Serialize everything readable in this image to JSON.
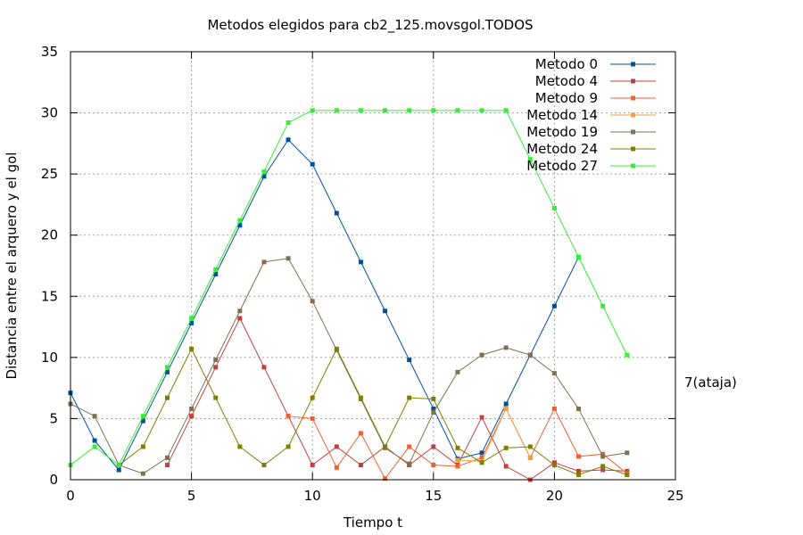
{
  "chart_data": {
    "type": "line",
    "title": "Metodos elegidos para cb2_125.movsgol.TODOS",
    "xlabel": "Tiempo t",
    "ylabel": "Distancia entre el arquero y el gol",
    "xlim": [
      0,
      25
    ],
    "ylim": [
      0,
      35
    ],
    "xticks": [
      "0",
      "5",
      "10",
      "15",
      "20",
      "25"
    ],
    "yticks": [
      "0",
      "5",
      "10",
      "15",
      "20",
      "25",
      "30",
      "35"
    ],
    "grid": true,
    "legend_position": "top-right",
    "annotation": "7(ataja)",
    "series": [
      {
        "name": "Metodo 0",
        "color": "#0050a0",
        "x": [
          0,
          1,
          2,
          3,
          4,
          5,
          6,
          7,
          8,
          9,
          10,
          11,
          12,
          13,
          14,
          15,
          16,
          17,
          18,
          19,
          20,
          21
        ],
        "y": [
          7.1,
          3.2,
          0.8,
          4.8,
          8.8,
          12.8,
          16.8,
          20.8,
          24.8,
          27.8,
          25.8,
          21.8,
          17.8,
          13.8,
          9.8,
          5.8,
          1.7,
          2.2,
          6.2,
          10.2,
          14.2,
          18.2
        ]
      },
      {
        "name": "Metodo 4",
        "color": "#c0403c",
        "x": [
          4,
          5,
          6,
          7,
          8,
          9,
          10,
          11,
          12,
          13,
          14,
          15,
          16,
          17,
          18,
          19,
          20,
          21,
          22,
          23
        ],
        "y": [
          1.2,
          5.2,
          9.2,
          13.2,
          9.2,
          5.2,
          1.2,
          2.7,
          1.2,
          2.7,
          1.2,
          2.7,
          1.2,
          5.1,
          1.1,
          0.0,
          1.4,
          0.7,
          0.8,
          0.7
        ]
      },
      {
        "name": "Metodo 9",
        "color": "#f06030",
        "x": [
          9,
          10,
          11,
          12,
          13,
          14,
          15,
          16,
          17,
          18,
          19,
          20,
          21,
          22,
          23
        ],
        "y": [
          5.2,
          5.0,
          1.0,
          3.8,
          0.1,
          2.7,
          1.2,
          1.1,
          1.8,
          5.8,
          1.8,
          5.8,
          1.9,
          2.1,
          0.5
        ]
      },
      {
        "name": "Metodo 14",
        "color": "#f0a040",
        "x": [
          16,
          17,
          18,
          19
        ],
        "y": [
          1.6,
          1.5,
          5.8,
          1.8
        ]
      },
      {
        "name": "Metodo 19",
        "color": "#807050",
        "x": [
          0,
          1,
          2,
          3,
          4,
          5,
          6,
          7,
          8,
          9,
          10,
          11,
          12,
          13,
          14,
          15,
          16,
          17,
          18,
          19,
          20,
          21,
          22,
          23
        ],
        "y": [
          6.2,
          5.2,
          1.2,
          0.5,
          1.8,
          5.8,
          9.8,
          13.8,
          17.8,
          18.1,
          14.6,
          10.6,
          6.6,
          2.6,
          1.3,
          5.5,
          8.8,
          10.2,
          10.8,
          10.2,
          8.7,
          5.8,
          1.9,
          2.2
        ]
      },
      {
        "name": "Metodo 24",
        "color": "#808000",
        "x": [
          2,
          3,
          4,
          5,
          6,
          7,
          8,
          9,
          10,
          11,
          12,
          13,
          14,
          15,
          16,
          17,
          18,
          19,
          20,
          21,
          22,
          23
        ],
        "y": [
          1.2,
          2.7,
          6.7,
          10.7,
          6.7,
          2.7,
          1.2,
          2.7,
          6.7,
          10.7,
          6.7,
          2.7,
          6.7,
          6.6,
          2.6,
          1.4,
          2.6,
          2.7,
          1.2,
          0.4,
          1.1,
          0.4
        ]
      },
      {
        "name": "Metodo 27",
        "color": "#33ee33",
        "x": [
          0,
          1,
          2,
          3,
          4,
          5,
          6,
          7,
          8,
          9,
          10,
          11,
          12,
          13,
          14,
          15,
          16,
          17,
          18,
          19,
          20,
          21,
          22,
          23
        ],
        "y": [
          1.2,
          2.7,
          1.2,
          5.2,
          9.2,
          13.2,
          17.2,
          21.2,
          25.2,
          29.2,
          30.2,
          30.2,
          30.2,
          30.2,
          30.2,
          30.2,
          30.2,
          30.2,
          30.2,
          26.2,
          22.2,
          18.2,
          14.2,
          10.2
        ]
      }
    ]
  }
}
